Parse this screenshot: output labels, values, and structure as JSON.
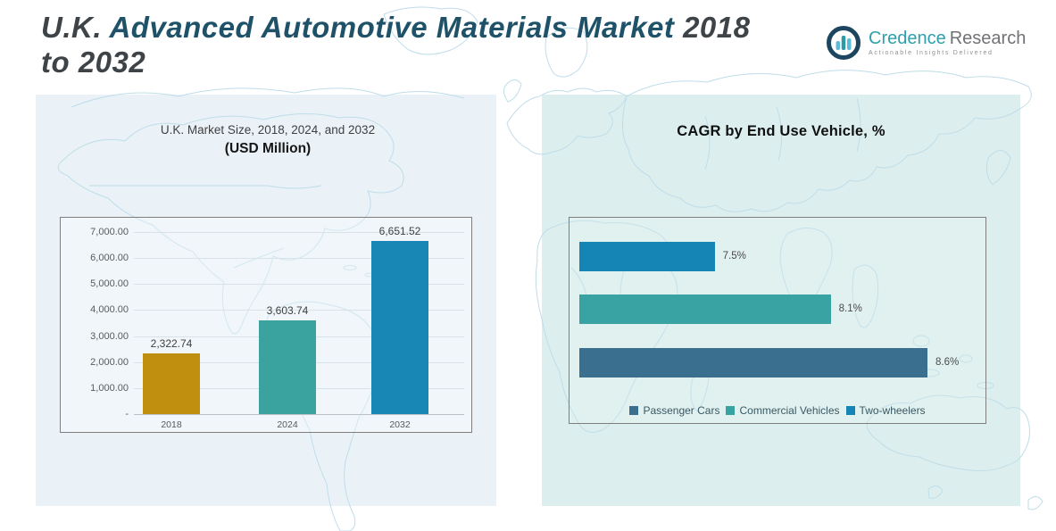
{
  "header": {
    "title_full": "U.K. Advanced Automotive Materials Market 2018 to 2032",
    "title_lines": [
      [
        {
          "text": "U.K. ",
          "color": "#3E4347"
        },
        {
          "text": "Advanced Automotive Materials Market ",
          "color": "#1F5268"
        },
        {
          "text": "2018",
          "color": "#3E4347"
        }
      ],
      [
        {
          "text": "to 2032",
          "color": "#3E4347"
        }
      ]
    ],
    "logo": {
      "brand_primary": "Credence",
      "brand_secondary": "Research",
      "tagline": "Actionable Insights Delivered",
      "icon": "bar-chart-circle-icon",
      "colors": {
        "primary": "#2EA0AC",
        "secondary": "#717276",
        "mark_ring": "#1C4660",
        "mark_bar_light": "#5FB9DB",
        "mark_bar_teal": "#2D9AA5",
        "tagline": "#8F9093"
      }
    }
  },
  "chart_data": [
    {
      "type": "bar",
      "title": "U.K. Market Size, 2018, 2024, and 2032",
      "subtitle": "(USD Million)",
      "categories": [
        "2018",
        "2024",
        "2032"
      ],
      "values": [
        2322.74,
        3603.74,
        6651.52
      ],
      "value_labels": [
        "2,322.74",
        "3,603.74",
        "6,651.52"
      ],
      "bar_colors": [
        "#C08F10",
        "#3BA39F",
        "#1987B5"
      ],
      "xlabel": "",
      "ylabel": "",
      "ylim": [
        0,
        7000
      ],
      "y_ticks": [
        {
          "value": 7000,
          "label": "7,000.00"
        },
        {
          "value": 6000,
          "label": "6,000.00"
        },
        {
          "value": 5000,
          "label": "5,000.00"
        },
        {
          "value": 4000,
          "label": "4,000.00"
        },
        {
          "value": 3000,
          "label": "3,000.00"
        },
        {
          "value": 2000,
          "label": "2,000.00"
        },
        {
          "value": 1000,
          "label": "1,000.00"
        },
        {
          "value": 0,
          "label": "-"
        }
      ],
      "grid": true,
      "legend": "none"
    },
    {
      "type": "bar",
      "orientation": "horizontal",
      "title": "CAGR by End Use Vehicle, %",
      "rows": [
        {
          "label": "Two-wheelers",
          "value": 7.5,
          "value_label": "7.5%",
          "color": "#1585B5"
        },
        {
          "label": "Commercial Vehicles",
          "value": 8.1,
          "value_label": "8.1%",
          "color": "#38A3A2"
        },
        {
          "label": "Passenger Cars",
          "value": 8.6,
          "value_label": "8.6%",
          "color": "#3A6F8F"
        }
      ],
      "xlim": [
        6.8,
        8.9
      ],
      "grid": false,
      "legend": {
        "position": "bottom",
        "items": [
          {
            "label": "Passenger Cars",
            "color": "#3A6F8F"
          },
          {
            "label": "Commercial Vehicles",
            "color": "#38A3A2"
          },
          {
            "label": "Two-wheelers",
            "color": "#1585B5"
          }
        ]
      }
    }
  ],
  "background": {
    "left_panel_color": "#EAF2F8",
    "right_panel_color": "#DCEFEE",
    "map_line_color": "#BFDDE9"
  }
}
